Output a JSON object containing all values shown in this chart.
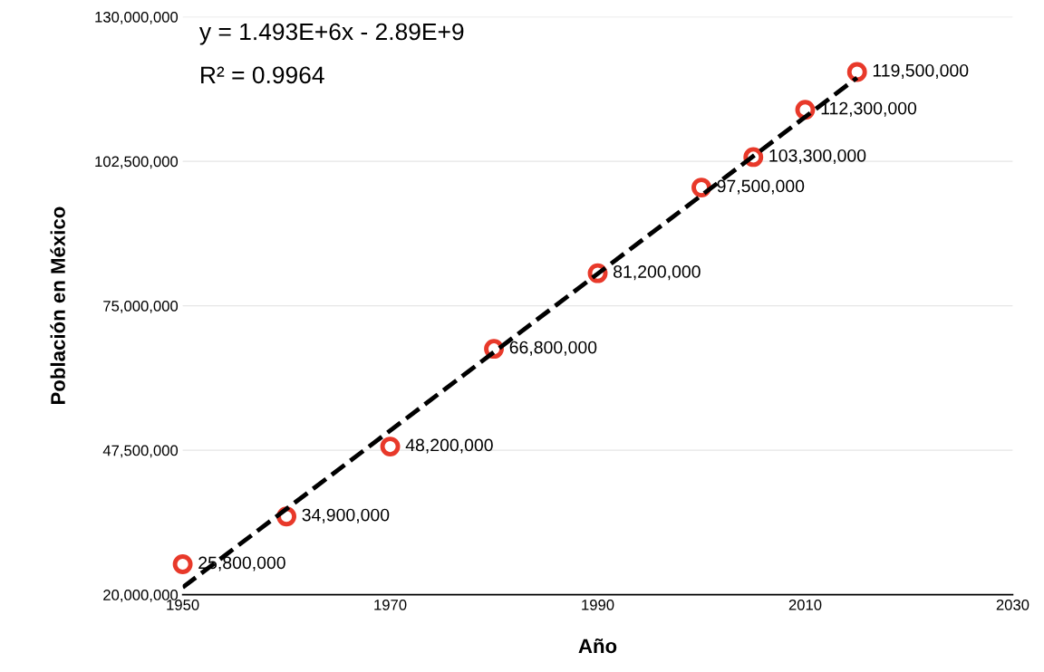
{
  "chart_data": {
    "type": "scatter",
    "xlabel": "Año",
    "ylabel": "Población en México",
    "xlim": [
      1950,
      2030
    ],
    "xticks": [
      1950,
      1970,
      1990,
      2010,
      2030
    ],
    "ylim": [
      20000000,
      130000000
    ],
    "yticks": [
      {
        "value": 20000000,
        "label": "20,000,000"
      },
      {
        "value": 47500000,
        "label": "47,500,000"
      },
      {
        "value": 75000000,
        "label": "75,000,000"
      },
      {
        "value": 102500000,
        "label": "102,500,000"
      },
      {
        "value": 130000000,
        "label": "130,000,000"
      }
    ],
    "grid": "y",
    "series": [
      {
        "marker": "circle",
        "color": "#e8392a",
        "x": [
          1950,
          1960,
          1970,
          1980,
          1990,
          2000,
          2005,
          2010,
          2015
        ],
        "values": [
          25800000,
          34900000,
          48200000,
          66800000,
          81200000,
          97500000,
          103300000,
          112300000,
          119500000
        ],
        "value_labels": [
          "25,800,000",
          "34,900,000",
          "48,200,000",
          "66,800,000",
          "81,200,000",
          "97,500,000",
          "103,300,000",
          "112,300,000",
          "119,500,000"
        ]
      },
      {
        "type": "line",
        "marker": "none",
        "color": "#000000",
        "line_style": "dashed",
        "x": [
          1950,
          2015
        ],
        "values": [
          21400000,
          118400000
        ]
      }
    ],
    "annotations": [
      "y = 1.493E+6x - 2.89E+9",
      "R² = 0.9964"
    ]
  }
}
